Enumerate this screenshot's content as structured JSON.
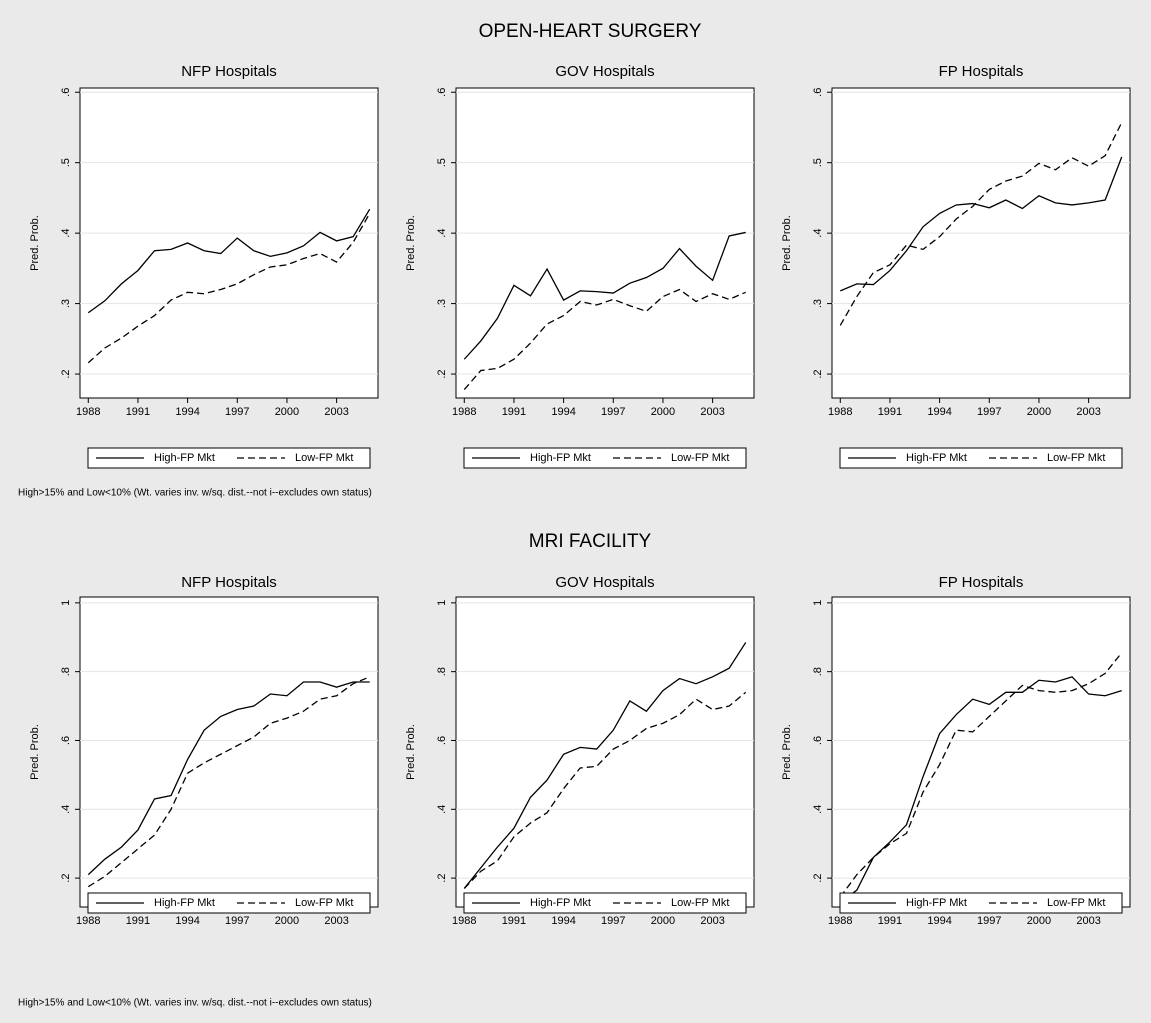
{
  "sections": [
    {
      "title": "OPEN-HEART SURGERY",
      "note": "High>15% and Low<10% (Wt. varies inv. w/sq. dist.--not i--excludes own status)"
    },
    {
      "title": "MRI FACILITY",
      "note": "High>15% and Low<10% (Wt. varies inv. w/sq. dist.--not i--excludes own status)"
    }
  ],
  "chart_data": [
    {
      "type": "line",
      "title": "NFP Hospitals",
      "ylabel": "Pred. Prob.",
      "x": [
        1988,
        1989,
        1990,
        1991,
        1992,
        1993,
        1994,
        1995,
        1996,
        1997,
        1998,
        1999,
        2000,
        2001,
        2002,
        2003,
        2004,
        2005
      ],
      "xlim": [
        1987.5,
        2005.5
      ],
      "xticks": [
        1988,
        1991,
        1994,
        1997,
        2000,
        2003
      ],
      "ylim": [
        0.166,
        0.606
      ],
      "yticks": [
        {
          "value": 0.2,
          "label": ".2"
        },
        {
          "value": 0.3,
          "label": ".3"
        },
        {
          "value": 0.4,
          "label": ".4"
        },
        {
          "value": 0.5,
          "label": ".5"
        },
        {
          "value": 0.6,
          "label": ".6"
        }
      ],
      "grid": true,
      "series": [
        {
          "name": "High-FP Mkt",
          "color": "#000000",
          "line_style": "solid",
          "values": [
            0.287,
            0.304,
            0.328,
            0.347,
            0.375,
            0.377,
            0.386,
            0.375,
            0.371,
            0.393,
            0.375,
            0.367,
            0.372,
            0.382,
            0.401,
            0.389,
            0.395,
            0.434
          ]
        },
        {
          "name": "Low-FP Mkt",
          "color": "#000000",
          "line_style": "dashed",
          "values": [
            0.216,
            0.237,
            0.251,
            0.268,
            0.283,
            0.305,
            0.316,
            0.314,
            0.32,
            0.328,
            0.341,
            0.352,
            0.355,
            0.364,
            0.371,
            0.359,
            0.387,
            0.428
          ]
        }
      ]
    },
    {
      "type": "line",
      "title": "GOV Hospitals",
      "ylabel": "Pred. Prob.",
      "x": [
        1988,
        1989,
        1990,
        1991,
        1992,
        1993,
        1994,
        1995,
        1996,
        1997,
        1998,
        1999,
        2000,
        2001,
        2002,
        2003,
        2004,
        2005
      ],
      "xlim": [
        1987.5,
        2005.5
      ],
      "xticks": [
        1988,
        1991,
        1994,
        1997,
        2000,
        2003
      ],
      "ylim": [
        0.166,
        0.606
      ],
      "yticks": [
        {
          "value": 0.2,
          "label": ".2"
        },
        {
          "value": 0.3,
          "label": ".3"
        },
        {
          "value": 0.4,
          "label": ".4"
        },
        {
          "value": 0.5,
          "label": ".5"
        },
        {
          "value": 0.6,
          "label": ".6"
        }
      ],
      "grid": true,
      "series": [
        {
          "name": "High-FP Mkt",
          "color": "#000000",
          "line_style": "solid",
          "values": [
            0.221,
            0.247,
            0.279,
            0.326,
            0.311,
            0.349,
            0.305,
            0.318,
            0.317,
            0.315,
            0.329,
            0.337,
            0.35,
            0.378,
            0.353,
            0.333,
            0.396,
            0.401
          ]
        },
        {
          "name": "Low-FP Mkt",
          "color": "#000000",
          "line_style": "dashed",
          "values": [
            0.178,
            0.205,
            0.208,
            0.221,
            0.244,
            0.271,
            0.283,
            0.303,
            0.298,
            0.306,
            0.297,
            0.289,
            0.31,
            0.32,
            0.303,
            0.314,
            0.306,
            0.316
          ]
        }
      ]
    },
    {
      "type": "line",
      "title": "FP Hospitals",
      "ylabel": "Pred. Prob.",
      "x": [
        1988,
        1989,
        1990,
        1991,
        1992,
        1993,
        1994,
        1995,
        1996,
        1997,
        1998,
        1999,
        2000,
        2001,
        2002,
        2003,
        2004,
        2005
      ],
      "xlim": [
        1987.5,
        2005.5
      ],
      "xticks": [
        1988,
        1991,
        1994,
        1997,
        2000,
        2003
      ],
      "ylim": [
        0.166,
        0.606
      ],
      "yticks": [
        {
          "value": 0.2,
          "label": ".2"
        },
        {
          "value": 0.3,
          "label": ".3"
        },
        {
          "value": 0.4,
          "label": ".4"
        },
        {
          "value": 0.5,
          "label": ".5"
        },
        {
          "value": 0.6,
          "label": ".6"
        }
      ],
      "grid": true,
      "series": [
        {
          "name": "High-FP Mkt",
          "color": "#000000",
          "line_style": "solid",
          "values": [
            0.318,
            0.328,
            0.327,
            0.347,
            0.375,
            0.409,
            0.428,
            0.44,
            0.442,
            0.436,
            0.447,
            0.435,
            0.453,
            0.443,
            0.44,
            0.443,
            0.447,
            0.508
          ]
        },
        {
          "name": "Low-FP Mkt",
          "color": "#000000",
          "line_style": "dashed",
          "values": [
            0.269,
            0.31,
            0.344,
            0.355,
            0.383,
            0.377,
            0.395,
            0.42,
            0.438,
            0.462,
            0.474,
            0.481,
            0.499,
            0.49,
            0.507,
            0.495,
            0.51,
            0.557
          ]
        }
      ]
    },
    {
      "type": "line",
      "title": "NFP Hospitals",
      "ylabel": "Pred. Prob.",
      "x": [
        1988,
        1989,
        1990,
        1991,
        1992,
        1993,
        1994,
        1995,
        1996,
        1997,
        1998,
        1999,
        2000,
        2001,
        2002,
        2003,
        2004,
        2005
      ],
      "xlim": [
        1987.5,
        2005.5
      ],
      "xticks": [
        1988,
        1991,
        1994,
        1997,
        2000,
        2003
      ],
      "ylim": [
        0.116,
        1.017
      ],
      "yticks": [
        {
          "value": 0.2,
          "label": ".2"
        },
        {
          "value": 0.4,
          "label": ".4"
        },
        {
          "value": 0.6,
          "label": ".6"
        },
        {
          "value": 0.8,
          "label": ".8"
        },
        1
      ],
      "grid": true,
      "series": [
        {
          "name": "High-FP Mkt",
          "color": "#000000",
          "line_style": "solid",
          "values": [
            0.21,
            0.255,
            0.29,
            0.34,
            0.43,
            0.44,
            0.545,
            0.63,
            0.67,
            0.69,
            0.7,
            0.735,
            0.73,
            0.77,
            0.77,
            0.755,
            0.77,
            0.77
          ]
        },
        {
          "name": "Low-FP Mkt",
          "color": "#000000",
          "line_style": "dashed",
          "values": [
            0.175,
            0.205,
            0.245,
            0.285,
            0.325,
            0.4,
            0.505,
            0.535,
            0.56,
            0.585,
            0.61,
            0.65,
            0.665,
            0.685,
            0.72,
            0.73,
            0.765,
            0.785
          ]
        }
      ]
    },
    {
      "type": "line",
      "title": "GOV Hospitals",
      "ylabel": "Pred. Prob.",
      "x": [
        1988,
        1989,
        1990,
        1991,
        1992,
        1993,
        1994,
        1995,
        1996,
        1997,
        1998,
        1999,
        2000,
        2001,
        2002,
        2003,
        2004,
        2005
      ],
      "xlim": [
        1987.5,
        2005.5
      ],
      "xticks": [
        1988,
        1991,
        1994,
        1997,
        2000,
        2003
      ],
      "ylim": [
        0.116,
        1.017
      ],
      "yticks": [
        {
          "value": 0.2,
          "label": ".2"
        },
        {
          "value": 0.4,
          "label": ".4"
        },
        {
          "value": 0.6,
          "label": ".6"
        },
        {
          "value": 0.8,
          "label": ".8"
        },
        1
      ],
      "grid": true,
      "series": [
        {
          "name": "High-FP Mkt",
          "color": "#000000",
          "line_style": "solid",
          "values": [
            0.17,
            0.23,
            0.29,
            0.345,
            0.435,
            0.485,
            0.56,
            0.58,
            0.575,
            0.63,
            0.715,
            0.685,
            0.745,
            0.78,
            0.765,
            0.785,
            0.81,
            0.885
          ]
        },
        {
          "name": "Low-FP Mkt",
          "color": "#000000",
          "line_style": "dashed",
          "values": [
            0.17,
            0.22,
            0.25,
            0.32,
            0.36,
            0.39,
            0.46,
            0.52,
            0.525,
            0.575,
            0.6,
            0.635,
            0.65,
            0.675,
            0.72,
            0.69,
            0.7,
            0.74
          ]
        }
      ]
    },
    {
      "type": "line",
      "title": "FP Hospitals",
      "ylabel": "Pred. Prob.",
      "x": [
        1988,
        1989,
        1990,
        1991,
        1992,
        1993,
        1994,
        1995,
        1996,
        1997,
        1998,
        1999,
        2000,
        2001,
        2002,
        2003,
        2004,
        2005
      ],
      "xlim": [
        1987.5,
        2005.5
      ],
      "xticks": [
        1988,
        1991,
        1994,
        1997,
        2000,
        2003
      ],
      "ylim": [
        0.116,
        1.017
      ],
      "yticks": [
        {
          "value": 0.2,
          "label": ".2"
        },
        {
          "value": 0.4,
          "label": ".4"
        },
        {
          "value": 0.6,
          "label": ".6"
        },
        {
          "value": 0.8,
          "label": ".8"
        },
        1
      ],
      "grid": true,
      "series": [
        {
          "name": "High-FP Mkt",
          "color": "#000000",
          "line_style": "solid",
          "values": [
            0.13,
            0.165,
            0.26,
            0.305,
            0.355,
            0.495,
            0.62,
            0.675,
            0.72,
            0.705,
            0.74,
            0.74,
            0.775,
            0.77,
            0.785,
            0.735,
            0.73,
            0.745
          ]
        },
        {
          "name": "Low-FP Mkt",
          "color": "#000000",
          "line_style": "dashed",
          "values": [
            0.145,
            0.21,
            0.26,
            0.3,
            0.33,
            0.45,
            0.53,
            0.63,
            0.625,
            0.67,
            0.715,
            0.76,
            0.745,
            0.74,
            0.745,
            0.765,
            0.795,
            0.855
          ]
        }
      ]
    }
  ]
}
